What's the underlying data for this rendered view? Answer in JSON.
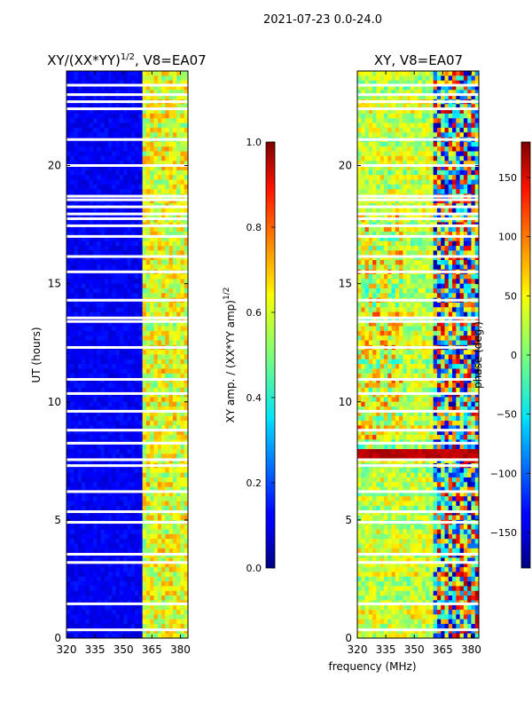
{
  "figure": {
    "suptitle": "2021-07-23 0.0-24.0",
    "xlabel": "frequency (MHz)"
  },
  "chart_data": [
    {
      "type": "heatmap",
      "title": "XY/(XX*YY)",
      "title_exponent": "1/2",
      "title_suffix": ", V8=EA07",
      "xlabel": "",
      "ylabel": "UT (hours)",
      "xlim": [
        320,
        384
      ],
      "ylim": [
        0,
        24
      ],
      "xticks": [
        "320",
        "335",
        "350",
        "365",
        "380"
      ],
      "yticks": [
        "0",
        "5",
        "10",
        "15",
        "20"
      ],
      "colormap": "jet",
      "colorbar": {
        "label": "XY amp. / (XX*YY amp)",
        "label_exponent": "1/2",
        "range": [
          0.0,
          1.0
        ],
        "ticks": [
          "0.0",
          "0.2",
          "0.4",
          "0.6",
          "0.8",
          "1.0"
        ]
      },
      "notes": "low amplitude (dark blue) below ~361 MHz; bright cyan/green/yellow vertical stripes between 361 and 384 MHz; white gaps are flagged times"
    },
    {
      "type": "heatmap",
      "title": "XY, V8=EA07",
      "xlabel": "frequency (MHz)",
      "ylabel": "",
      "xlim": [
        320,
        384
      ],
      "ylim": [
        0,
        24
      ],
      "xticks": [
        "320",
        "335",
        "350",
        "365",
        "380"
      ],
      "yticks": [
        "0",
        "5",
        "10",
        "15",
        "20"
      ],
      "colormap": "jet",
      "colorbar": {
        "label": "phase (deg.)",
        "range": [
          -180,
          180
        ],
        "ticks": [
          "-150",
          "-100",
          "-50",
          "0",
          "50",
          "100",
          "150"
        ]
      },
      "notes": "mostly yellow/cyan phases near 0-60 deg, noisy red/blue structure above ~360 MHz; strong red band near 7.8 h; white gaps are flagged times"
    }
  ],
  "flagged_hours": [
    0.35,
    1.45,
    3.2,
    3.55,
    4.9,
    5.35,
    6.2,
    7.3,
    7.55,
    8.25,
    8.8,
    9.6,
    10.35,
    10.95,
    12.3,
    13.4,
    13.55,
    14.3,
    15.5,
    16.15,
    17.0,
    17.45,
    17.75,
    17.95,
    18.25,
    18.55,
    18.7,
    20.0,
    21.1,
    22.4,
    22.7,
    23.0,
    23.4
  ]
}
